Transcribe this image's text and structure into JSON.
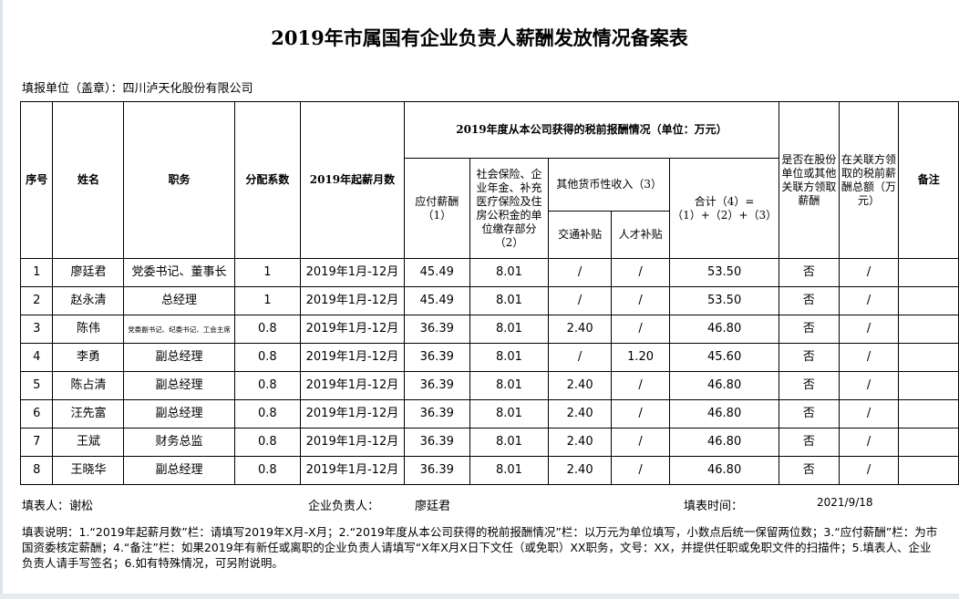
{
  "title": "2019年市属国有企业负责人薪酬发放情况备案表",
  "unit_label": "填报单位（盖章）：四川泸天化股份有限公司",
  "headers": {
    "seq": "序号",
    "name": "姓名",
    "position": "职务",
    "coefficient": "分配系数",
    "months": "2019年起薪月数",
    "group": "2019年度从本公司获得的税前报酬情况（单位：万元）",
    "payable": "应付薪酬（1）",
    "insurance": "社会保险、企业年金、补充医疗保险及住房公积金的单位缴存部分（2）",
    "other": "其他货币性收入（3）",
    "transport": "交通补贴",
    "talent": "人才补贴",
    "total": "合计（4）=（1）+（2）+（3）",
    "related_flag": "是否在股份单位或其他关联方领取薪酬",
    "related_amount": "在关联方领取的税前薪酬总额（万元）",
    "remark": "备注"
  },
  "rows": [
    {
      "seq": "1",
      "name": "廖廷君",
      "position": "党委书记、董事长",
      "coef": "1",
      "months": "2019年1月-12月",
      "payable": "45.49",
      "insurance": "8.01",
      "transport": "/",
      "talent": "/",
      "total": "53.50",
      "related_flag": "否",
      "related_amount": "/",
      "remark": ""
    },
    {
      "seq": "2",
      "name": "赵永清",
      "position": "总经理",
      "coef": "1",
      "months": "2019年1月-12月",
      "payable": "45.49",
      "insurance": "8.01",
      "transport": "/",
      "talent": "/",
      "total": "53.50",
      "related_flag": "否",
      "related_amount": "/",
      "remark": ""
    },
    {
      "seq": "3",
      "name": "陈伟",
      "position": "党委副书记、纪委书记、工会主席",
      "coef": "0.8",
      "months": "2019年1月-12月",
      "payable": "36.39",
      "insurance": "8.01",
      "transport": "2.40",
      "talent": "/",
      "total": "46.80",
      "related_flag": "否",
      "related_amount": "/",
      "remark": ""
    },
    {
      "seq": "4",
      "name": "李勇",
      "position": "副总经理",
      "coef": "0.8",
      "months": "2019年1月-12月",
      "payable": "36.39",
      "insurance": "8.01",
      "transport": "/",
      "talent": "1.20",
      "total": "45.60",
      "related_flag": "否",
      "related_amount": "/",
      "remark": ""
    },
    {
      "seq": "5",
      "name": "陈占清",
      "position": "副总经理",
      "coef": "0.8",
      "months": "2019年1月-12月",
      "payable": "36.39",
      "insurance": "8.01",
      "transport": "2.40",
      "talent": "/",
      "total": "46.80",
      "related_flag": "否",
      "related_amount": "/",
      "remark": ""
    },
    {
      "seq": "6",
      "name": "汪先富",
      "position": "副总经理",
      "coef": "0.8",
      "months": "2019年1月-12月",
      "payable": "36.39",
      "insurance": "8.01",
      "transport": "2.40",
      "talent": "/",
      "total": "46.80",
      "related_flag": "否",
      "related_amount": "/",
      "remark": ""
    },
    {
      "seq": "7",
      "name": "王斌",
      "position": "财务总监",
      "coef": "0.8",
      "months": "2019年1月-12月",
      "payable": "36.39",
      "insurance": "8.01",
      "transport": "2.40",
      "talent": "/",
      "total": "46.80",
      "related_flag": "否",
      "related_amount": "/",
      "remark": ""
    },
    {
      "seq": "8",
      "name": "王晓华",
      "position": "副总经理",
      "coef": "0.8",
      "months": "2019年1月-12月",
      "payable": "36.39",
      "insurance": "8.01",
      "transport": "2.40",
      "talent": "/",
      "total": "46.80",
      "related_flag": "否",
      "related_amount": "/",
      "remark": ""
    }
  ],
  "footer": {
    "filler": "填表人：谢松",
    "leader_label": "企业负责人：",
    "leader_name": "廖廷君",
    "date_label": "填表时间：",
    "date": "2021/9/18"
  },
  "note": "填表说明：1.“2019年起薪月数”栏：请填写2019年X月-X月；2.“2019年度从本公司获得的税前报酬情况”栏：以万元为单位填写，小数点后统一保留两位数；3.“应付薪酬”栏：为市国资委核定薪酬；4.“备注”栏：如果2019年有新任或离职的企业负责人请填写“X年X月X日下文任（或免职）XX职务，文号：XX，并提供任职或免职文件的扫描件；5.填表人、企业负责人请手写签名；6.如有特殊情况，可另附说明。"
}
